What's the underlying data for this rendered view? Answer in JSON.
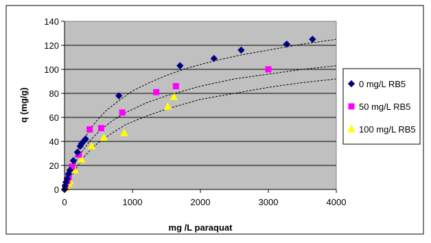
{
  "chart_data": {
    "type": "scatter",
    "xlabel": "mg /L paraquat",
    "ylabel": "q (mg/g)",
    "xlim": [
      0,
      4000
    ],
    "ylim": [
      0,
      140
    ],
    "x_ticks": [
      "0",
      "1000",
      "2000",
      "3000",
      "4000"
    ],
    "y_ticks": [
      "0",
      "20",
      "40",
      "60",
      "80",
      "100",
      "120",
      "140"
    ],
    "grid": "horizontal",
    "plot_background": "#C0C0C0",
    "legend_position": "right",
    "series": [
      {
        "name": "0 mg/L RB5",
        "marker": "diamond",
        "color": "#000080",
        "points": [
          [
            0,
            0
          ],
          [
            10,
            3
          ],
          [
            20,
            6
          ],
          [
            40,
            9
          ],
          [
            60,
            13
          ],
          [
            80,
            16
          ],
          [
            130,
            24
          ],
          [
            190,
            31
          ],
          [
            230,
            36
          ],
          [
            250,
            38
          ],
          [
            280,
            40
          ],
          [
            310,
            42
          ],
          [
            800,
            78
          ],
          [
            1700,
            103
          ],
          [
            2200,
            109
          ],
          [
            2600,
            116
          ],
          [
            3270,
            121
          ],
          [
            3650,
            125
          ]
        ],
        "fit": [
          [
            0,
            0
          ],
          [
            100,
            19
          ],
          [
            200,
            33
          ],
          [
            300,
            43
          ],
          [
            400,
            52
          ],
          [
            500,
            59
          ],
          [
            600,
            65
          ],
          [
            800,
            74
          ],
          [
            1000,
            82
          ],
          [
            1250,
            89
          ],
          [
            1500,
            95
          ],
          [
            1800,
            101
          ],
          [
            2200,
            107
          ],
          [
            2600,
            112
          ],
          [
            3000,
            116
          ],
          [
            3500,
            121
          ],
          [
            4000,
            125
          ]
        ]
      },
      {
        "name": "50 mg/L RB5",
        "marker": "square",
        "color": "#FF00FF",
        "points": [
          [
            10,
            2
          ],
          [
            40,
            7
          ],
          [
            60,
            10
          ],
          [
            110,
            19
          ],
          [
            210,
            29
          ],
          [
            370,
            50
          ],
          [
            540,
            51
          ],
          [
            850,
            64
          ],
          [
            1350,
            81
          ],
          [
            1640,
            86
          ],
          [
            3000,
            100
          ]
        ],
        "fit": [
          [
            0,
            0
          ],
          [
            100,
            15
          ],
          [
            200,
            27
          ],
          [
            300,
            35
          ],
          [
            400,
            42
          ],
          [
            500,
            48
          ],
          [
            700,
            57
          ],
          [
            900,
            64
          ],
          [
            1200,
            72
          ],
          [
            1500,
            78
          ],
          [
            2000,
            86
          ],
          [
            2500,
            92
          ],
          [
            3000,
            96
          ],
          [
            3500,
            100
          ],
          [
            4000,
            103
          ]
        ]
      },
      {
        "name": "100 mg/L RB5",
        "marker": "triangle",
        "color": "#FFFF00",
        "points": [
          [
            10,
            1
          ],
          [
            40,
            2
          ],
          [
            60,
            5
          ],
          [
            80,
            7
          ],
          [
            150,
            16
          ],
          [
            250,
            25
          ],
          [
            400,
            36
          ],
          [
            580,
            43
          ],
          [
            880,
            47
          ],
          [
            1520,
            69
          ],
          [
            1610,
            77
          ]
        ],
        "fit": [
          [
            0,
            0
          ],
          [
            100,
            11
          ],
          [
            200,
            20
          ],
          [
            300,
            28
          ],
          [
            400,
            34
          ],
          [
            500,
            39
          ],
          [
            700,
            47
          ],
          [
            900,
            54
          ],
          [
            1200,
            61
          ],
          [
            1500,
            67
          ],
          [
            2000,
            75
          ],
          [
            2500,
            80
          ],
          [
            3000,
            85
          ],
          [
            3500,
            89
          ],
          [
            4000,
            92
          ]
        ]
      }
    ]
  }
}
